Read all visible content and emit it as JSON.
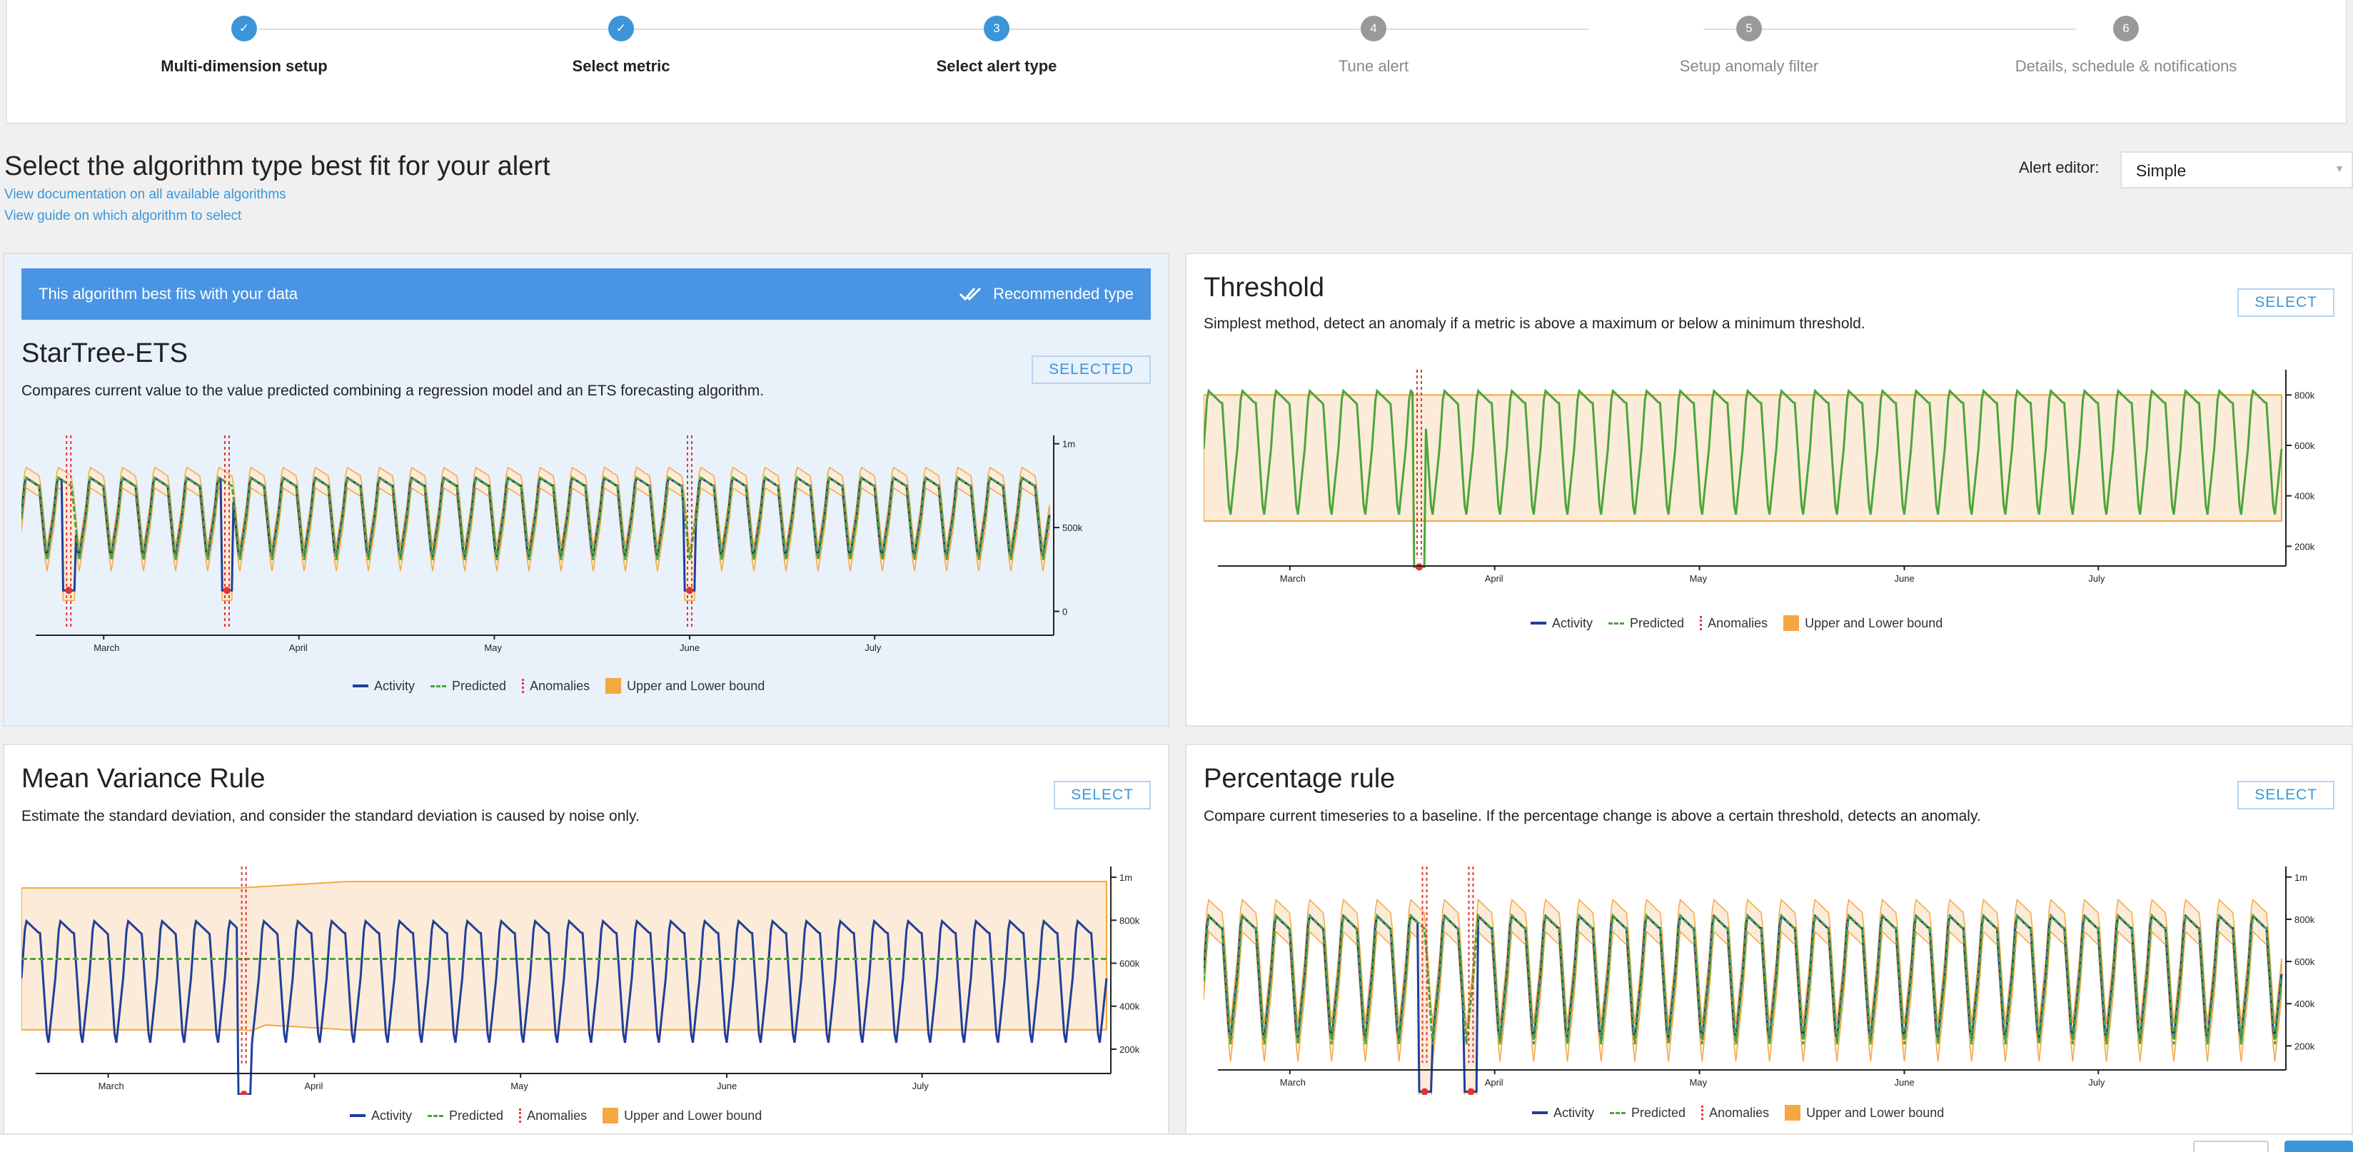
{
  "stepper": {
    "steps": [
      {
        "num": "1",
        "label": "Multi-dimension setup",
        "state": "done"
      },
      {
        "num": "2",
        "label": "Select metric",
        "state": "done"
      },
      {
        "num": "3",
        "label": "Select alert type",
        "state": "current"
      },
      {
        "num": "4",
        "label": "Tune alert",
        "state": "todo"
      },
      {
        "num": "5",
        "label": "Setup anomaly filter",
        "state": "todo"
      },
      {
        "num": "6",
        "label": "Details, schedule & notifications",
        "state": "todo"
      }
    ]
  },
  "header": {
    "title": "Select the algorithm type best fit for your alert",
    "link_docs": "View documentation on all available algorithms",
    "link_guide": "View guide on which algorithm to select",
    "editor_label": "Alert editor:",
    "editor_value": "Simple"
  },
  "legend": {
    "activity": "Activity",
    "predicted": "Predicted",
    "anomalies": "Anomalies",
    "bounds": "Upper and Lower bound"
  },
  "colors": {
    "accent": "#3b95d8",
    "activity": "#1f3f9a",
    "predicted": "#4aa63a",
    "anomaly": "#e33333",
    "bound": "#f5a742"
  },
  "cards": {
    "ets": {
      "banner": "This algorithm best fits with your data",
      "recommended": "Recommended type",
      "title": "StarTree-ETS",
      "desc": "Compares current value to the value predicted combining a regression model and an ETS forecasting algorithm.",
      "button": "SELECTED"
    },
    "threshold": {
      "title": "Threshold",
      "desc": "Simplest method, detect an anomaly if a metric is above a maximum or below a minimum threshold.",
      "button": "SELECT"
    },
    "meanvar": {
      "title": "Mean Variance Rule",
      "desc": "Estimate the standard deviation, and consider the standard deviation is caused by noise only.",
      "button": "SELECT"
    },
    "pct": {
      "title": "Percentage rule",
      "desc": "Compare current timeseries to a baseline. If the percentage change is above a certain threshold, detects an anomaly.",
      "button": "SELECT"
    }
  },
  "chart_data": [
    {
      "type": "line",
      "name_ref": "StarTree-ETS",
      "x_ticks": [
        "March",
        "April",
        "May",
        "June",
        "July"
      ],
      "y_ticks": [
        "1m",
        "500k",
        "0"
      ],
      "series": [
        {
          "name": "Activity"
        },
        {
          "name": "Predicted"
        }
      ],
      "cycles": 32,
      "activity_range": [
        300000,
        800000
      ],
      "anomaly_positions": [
        0.046,
        0.2,
        0.65
      ],
      "bound_style": "band"
    },
    {
      "type": "line",
      "name_ref": "Threshold",
      "x_ticks": [
        "March",
        "April",
        "May",
        "June",
        "July"
      ],
      "y_ticks": [
        "800k",
        "600k",
        "400k",
        "200k"
      ],
      "series": [
        {
          "name": "Activity"
        }
      ],
      "cycles": 32,
      "activity_range": [
        300000,
        820000
      ],
      "threshold_bounds": [
        300000,
        800000
      ],
      "anomaly_positions": [
        0.2
      ],
      "bound_style": "box"
    },
    {
      "type": "line",
      "name_ref": "Mean Variance Rule",
      "x_ticks": [
        "March",
        "April",
        "May",
        "June",
        "July"
      ],
      "y_ticks": [
        "1m",
        "800k",
        "600k",
        "400k",
        "200k"
      ],
      "series": [
        {
          "name": "Activity"
        },
        {
          "name": "Predicted"
        }
      ],
      "cycles": 32,
      "activity_range": [
        200000,
        800000
      ],
      "predicted_level": 620000,
      "anomaly_positions": [
        0.205
      ],
      "bound_style": "wide"
    },
    {
      "type": "line",
      "name_ref": "Percentage rule",
      "x_ticks": [
        "March",
        "April",
        "May",
        "June",
        "July"
      ],
      "y_ticks": [
        "1m",
        "800k",
        "600k",
        "400k",
        "200k"
      ],
      "series": [
        {
          "name": "Activity"
        },
        {
          "name": "Predicted"
        }
      ],
      "cycles": 32,
      "activity_range": [
        200000,
        820000
      ],
      "anomaly_positions": [
        0.205,
        0.248
      ],
      "bound_style": "band"
    }
  ]
}
